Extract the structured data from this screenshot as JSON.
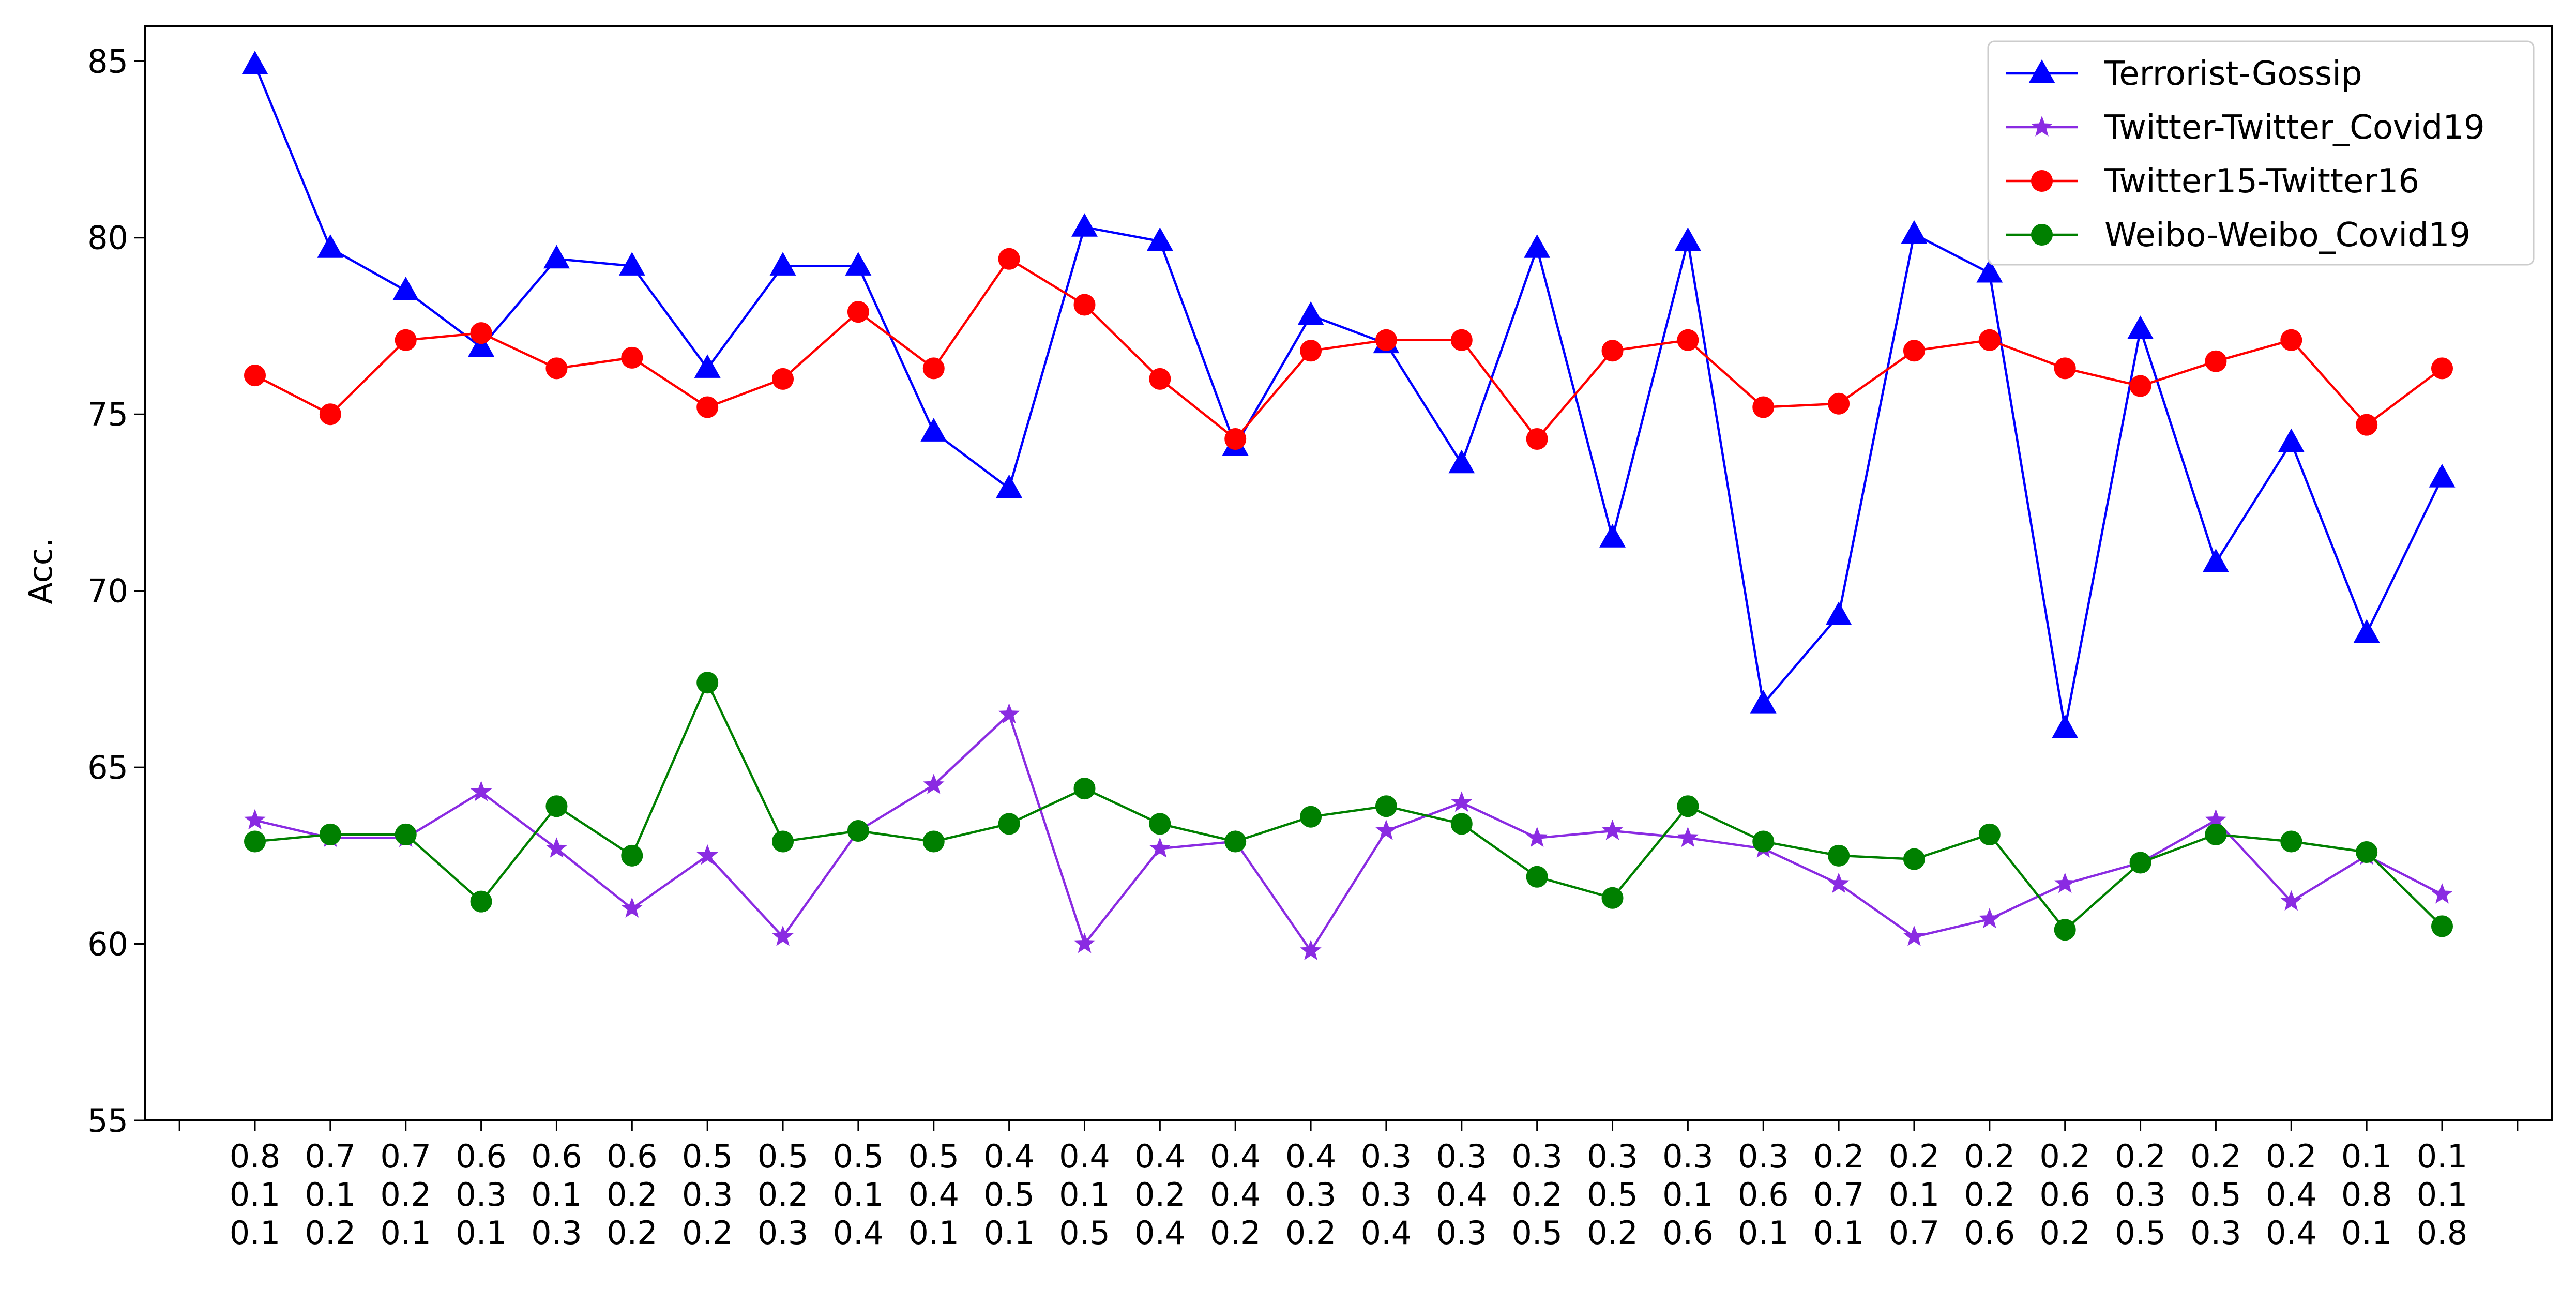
{
  "chart_data": {
    "type": "line",
    "title": "",
    "xlabel": "",
    "ylabel": "Acc.",
    "ylim": [
      55,
      86
    ],
    "yticks": [
      55,
      60,
      65,
      70,
      75,
      80,
      85
    ],
    "grid": false,
    "legend_position": "top-right",
    "categories": [
      [
        "0.8",
        "0.1",
        "0.1"
      ],
      [
        "0.7",
        "0.1",
        "0.2"
      ],
      [
        "0.7",
        "0.2",
        "0.1"
      ],
      [
        "0.6",
        "0.3",
        "0.1"
      ],
      [
        "0.6",
        "0.1",
        "0.3"
      ],
      [
        "0.6",
        "0.2",
        "0.2"
      ],
      [
        "0.5",
        "0.3",
        "0.2"
      ],
      [
        "0.5",
        "0.2",
        "0.3"
      ],
      [
        "0.5",
        "0.1",
        "0.4"
      ],
      [
        "0.5",
        "0.4",
        "0.1"
      ],
      [
        "0.4",
        "0.5",
        "0.1"
      ],
      [
        "0.4",
        "0.1",
        "0.5"
      ],
      [
        "0.4",
        "0.2",
        "0.4"
      ],
      [
        "0.4",
        "0.4",
        "0.2"
      ],
      [
        "0.4",
        "0.3",
        "0.2"
      ],
      [
        "0.3",
        "0.3",
        "0.4"
      ],
      [
        "0.3",
        "0.4",
        "0.3"
      ],
      [
        "0.3",
        "0.2",
        "0.5"
      ],
      [
        "0.3",
        "0.5",
        "0.2"
      ],
      [
        "0.3",
        "0.1",
        "0.6"
      ],
      [
        "0.3",
        "0.6",
        "0.1"
      ],
      [
        "0.2",
        "0.7",
        "0.1"
      ],
      [
        "0.2",
        "0.1",
        "0.7"
      ],
      [
        "0.2",
        "0.2",
        "0.6"
      ],
      [
        "0.2",
        "0.6",
        "0.2"
      ],
      [
        "0.2",
        "0.3",
        "0.5"
      ],
      [
        "0.2",
        "0.5",
        "0.3"
      ],
      [
        "0.2",
        "0.4",
        "0.4"
      ],
      [
        "0.1",
        "0.8",
        "0.1"
      ],
      [
        "0.1",
        "0.1",
        "0.8"
      ]
    ],
    "series": [
      {
        "name": "Terrorist-Gossip",
        "color": "#0000ff",
        "marker": "triangle",
        "values": [
          84.9,
          79.7,
          78.5,
          76.9,
          79.4,
          79.2,
          76.3,
          79.2,
          79.2,
          74.5,
          72.9,
          80.3,
          79.9,
          74.1,
          77.8,
          77.0,
          73.6,
          79.7,
          71.5,
          79.9,
          66.8,
          69.3,
          80.1,
          79.0,
          66.1,
          77.4,
          70.8,
          74.2,
          68.8,
          73.2
        ]
      },
      {
        "name": "Twitter-Twitter_Covid19",
        "color": "#8a2be2",
        "marker": "star",
        "values": [
          63.5,
          63.0,
          63.0,
          64.3,
          62.7,
          61.0,
          62.5,
          60.2,
          63.2,
          64.5,
          66.5,
          60.0,
          62.7,
          62.9,
          59.8,
          63.2,
          64.0,
          63.0,
          63.2,
          63.0,
          62.7,
          61.7,
          60.2,
          60.7,
          61.7,
          62.3,
          63.5,
          61.2,
          62.5,
          61.4
        ]
      },
      {
        "name": "Twitter15-Twitter16",
        "color": "#ff0000",
        "marker": "circle",
        "values": [
          76.1,
          75.0,
          77.1,
          77.3,
          76.3,
          76.6,
          75.2,
          76.0,
          77.9,
          76.3,
          79.4,
          78.1,
          76.0,
          74.3,
          76.8,
          77.1,
          77.1,
          74.3,
          76.8,
          77.1,
          75.2,
          75.3,
          76.8,
          77.1,
          76.3,
          75.8,
          76.5,
          77.1,
          74.7,
          76.3
        ]
      },
      {
        "name": "Weibo-Weibo_Covid19",
        "color": "#008000",
        "marker": "circle",
        "values": [
          62.9,
          63.1,
          63.1,
          61.2,
          63.9,
          62.5,
          67.4,
          62.9,
          63.2,
          62.9,
          63.4,
          64.4,
          63.4,
          62.9,
          63.6,
          63.9,
          63.4,
          61.9,
          61.3,
          63.9,
          62.9,
          62.5,
          62.4,
          63.1,
          60.4,
          62.3,
          63.1,
          62.9,
          62.6,
          60.5
        ]
      }
    ]
  }
}
